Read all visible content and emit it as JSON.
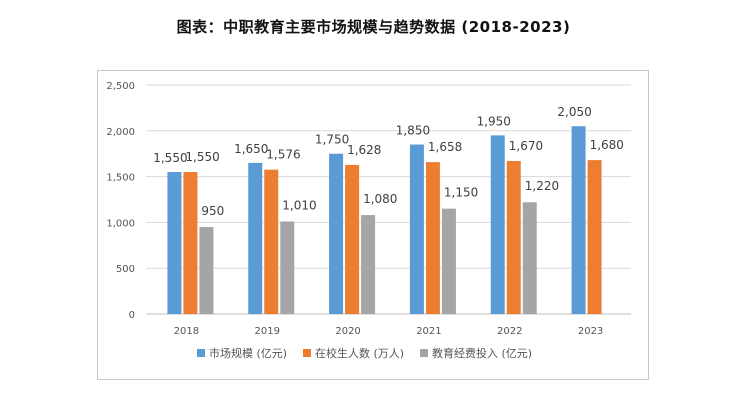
{
  "chart_data": {
    "type": "bar",
    "title": "图表：中职教育主要市场规模与趋势数据 (2018-2023)",
    "categories": [
      "2018",
      "2019",
      "2020",
      "2021",
      "2022",
      "2023"
    ],
    "series": [
      {
        "name": "市场规模 (亿元)",
        "values": [
          1550,
          1650,
          1750,
          1850,
          1950,
          2050
        ],
        "color": "#5B9BD5"
      },
      {
        "name": "在校生人数 (万人)",
        "values": [
          1550,
          1576,
          1628,
          1658,
          1670,
          1680
        ],
        "color": "#ED7D31"
      },
      {
        "name": "教育经费投入 (亿元)",
        "values": [
          950,
          1010,
          1080,
          1150,
          1220,
          null
        ],
        "color": "#A5A5A5"
      }
    ],
    "yticks": [
      "0",
      "500",
      "1,000",
      "1,500",
      "2,000",
      "2,500"
    ],
    "ylim": [
      0,
      2500
    ],
    "data_labels": [
      [
        "1,550",
        "1,650",
        "1,750",
        "1,850",
        "1,950",
        "2,050"
      ],
      [
        "1,550",
        "1,576",
        "1,628",
        "1,658",
        "1,670",
        "1,680"
      ],
      [
        "950",
        "1,010",
        "1,080",
        "1,150",
        "1,220",
        ""
      ]
    ],
    "xlabel": "",
    "ylabel": "",
    "grid": true,
    "legend_position": "bottom",
    "gridline_color": "#d9d9d9"
  }
}
